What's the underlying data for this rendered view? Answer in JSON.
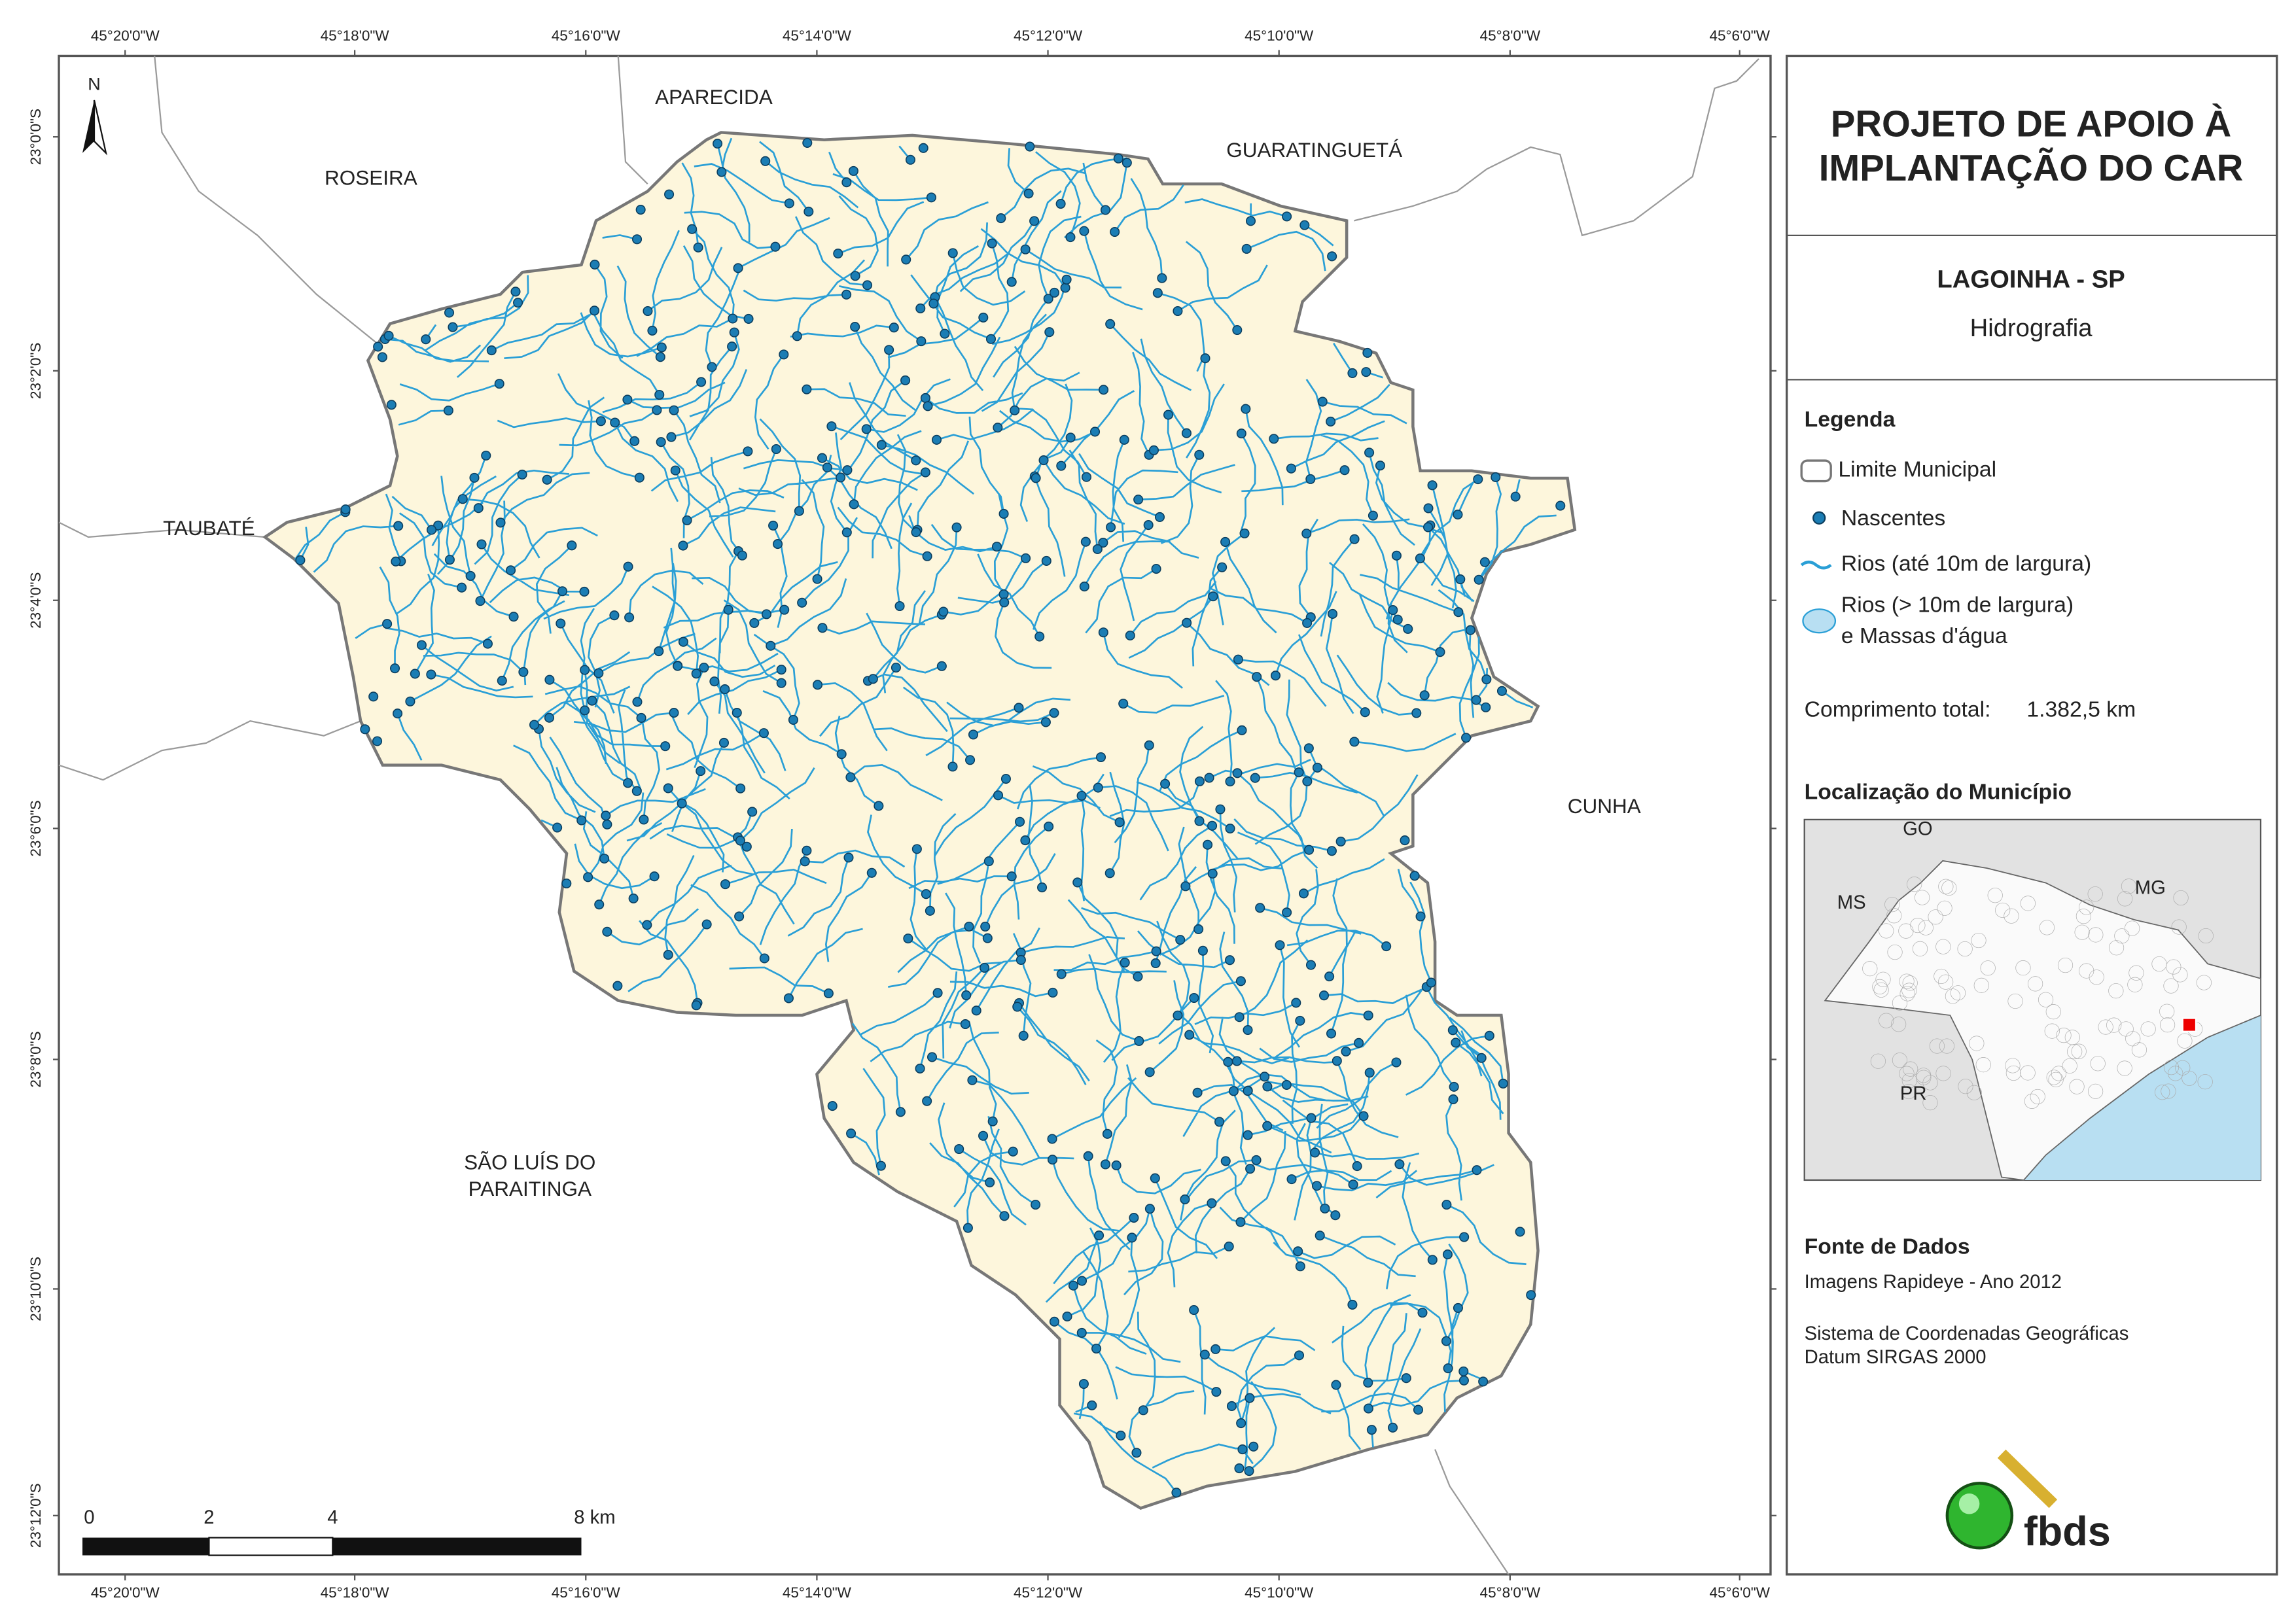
{
  "header": {
    "title_lines": [
      "PROJETO DE APOIO À",
      "IMPLANTAÇÃO DO CAR"
    ],
    "municipality": "LAGOINHA - SP",
    "theme": "Hidrografia"
  },
  "map": {
    "north": "N",
    "lon_labels": [
      "45°20'0\"W",
      "45°18'0\"W",
      "45°16'0\"W",
      "45°14'0\"W",
      "45°12'0\"W",
      "45°10'0\"W",
      "45°8'0\"W",
      "45°6'0\"W"
    ],
    "lat_labels": [
      "23°0'0\"S",
      "23°2'0\"S",
      "23°4'0\"S",
      "23°6'0\"S",
      "23°8'0\"S",
      "23°10'0\"S",
      "23°12'0\"S"
    ],
    "neighbors": [
      "APARECIDA",
      "ROSEIRA",
      "GUARATINGUETÁ",
      "TAUBATÉ",
      "CUNHA",
      "SÃO LUÍS DO",
      "PARAITINGA"
    ],
    "scale_labels": [
      "0",
      "2",
      "4",
      "8 km"
    ]
  },
  "legend": {
    "title": "Legenda",
    "items": [
      "Limite Municipal",
      "Nascentes",
      "Rios (até 10m de largura)",
      "Rios (> 10m de largura)",
      "e Massas d'água"
    ],
    "total_label": "Comprimento total:",
    "total_value": "1.382,5 km"
  },
  "location": {
    "title": "Localização do Município",
    "labels": [
      "GO",
      "MS",
      "MG",
      "PR"
    ]
  },
  "sources": {
    "title": "Fonte de Dados",
    "lines": [
      "Imagens Rapideye - Ano 2012",
      "Sistema de Coordenadas Geográficas",
      "Datum SIRGAS 2000"
    ]
  },
  "logo": "fbds"
}
